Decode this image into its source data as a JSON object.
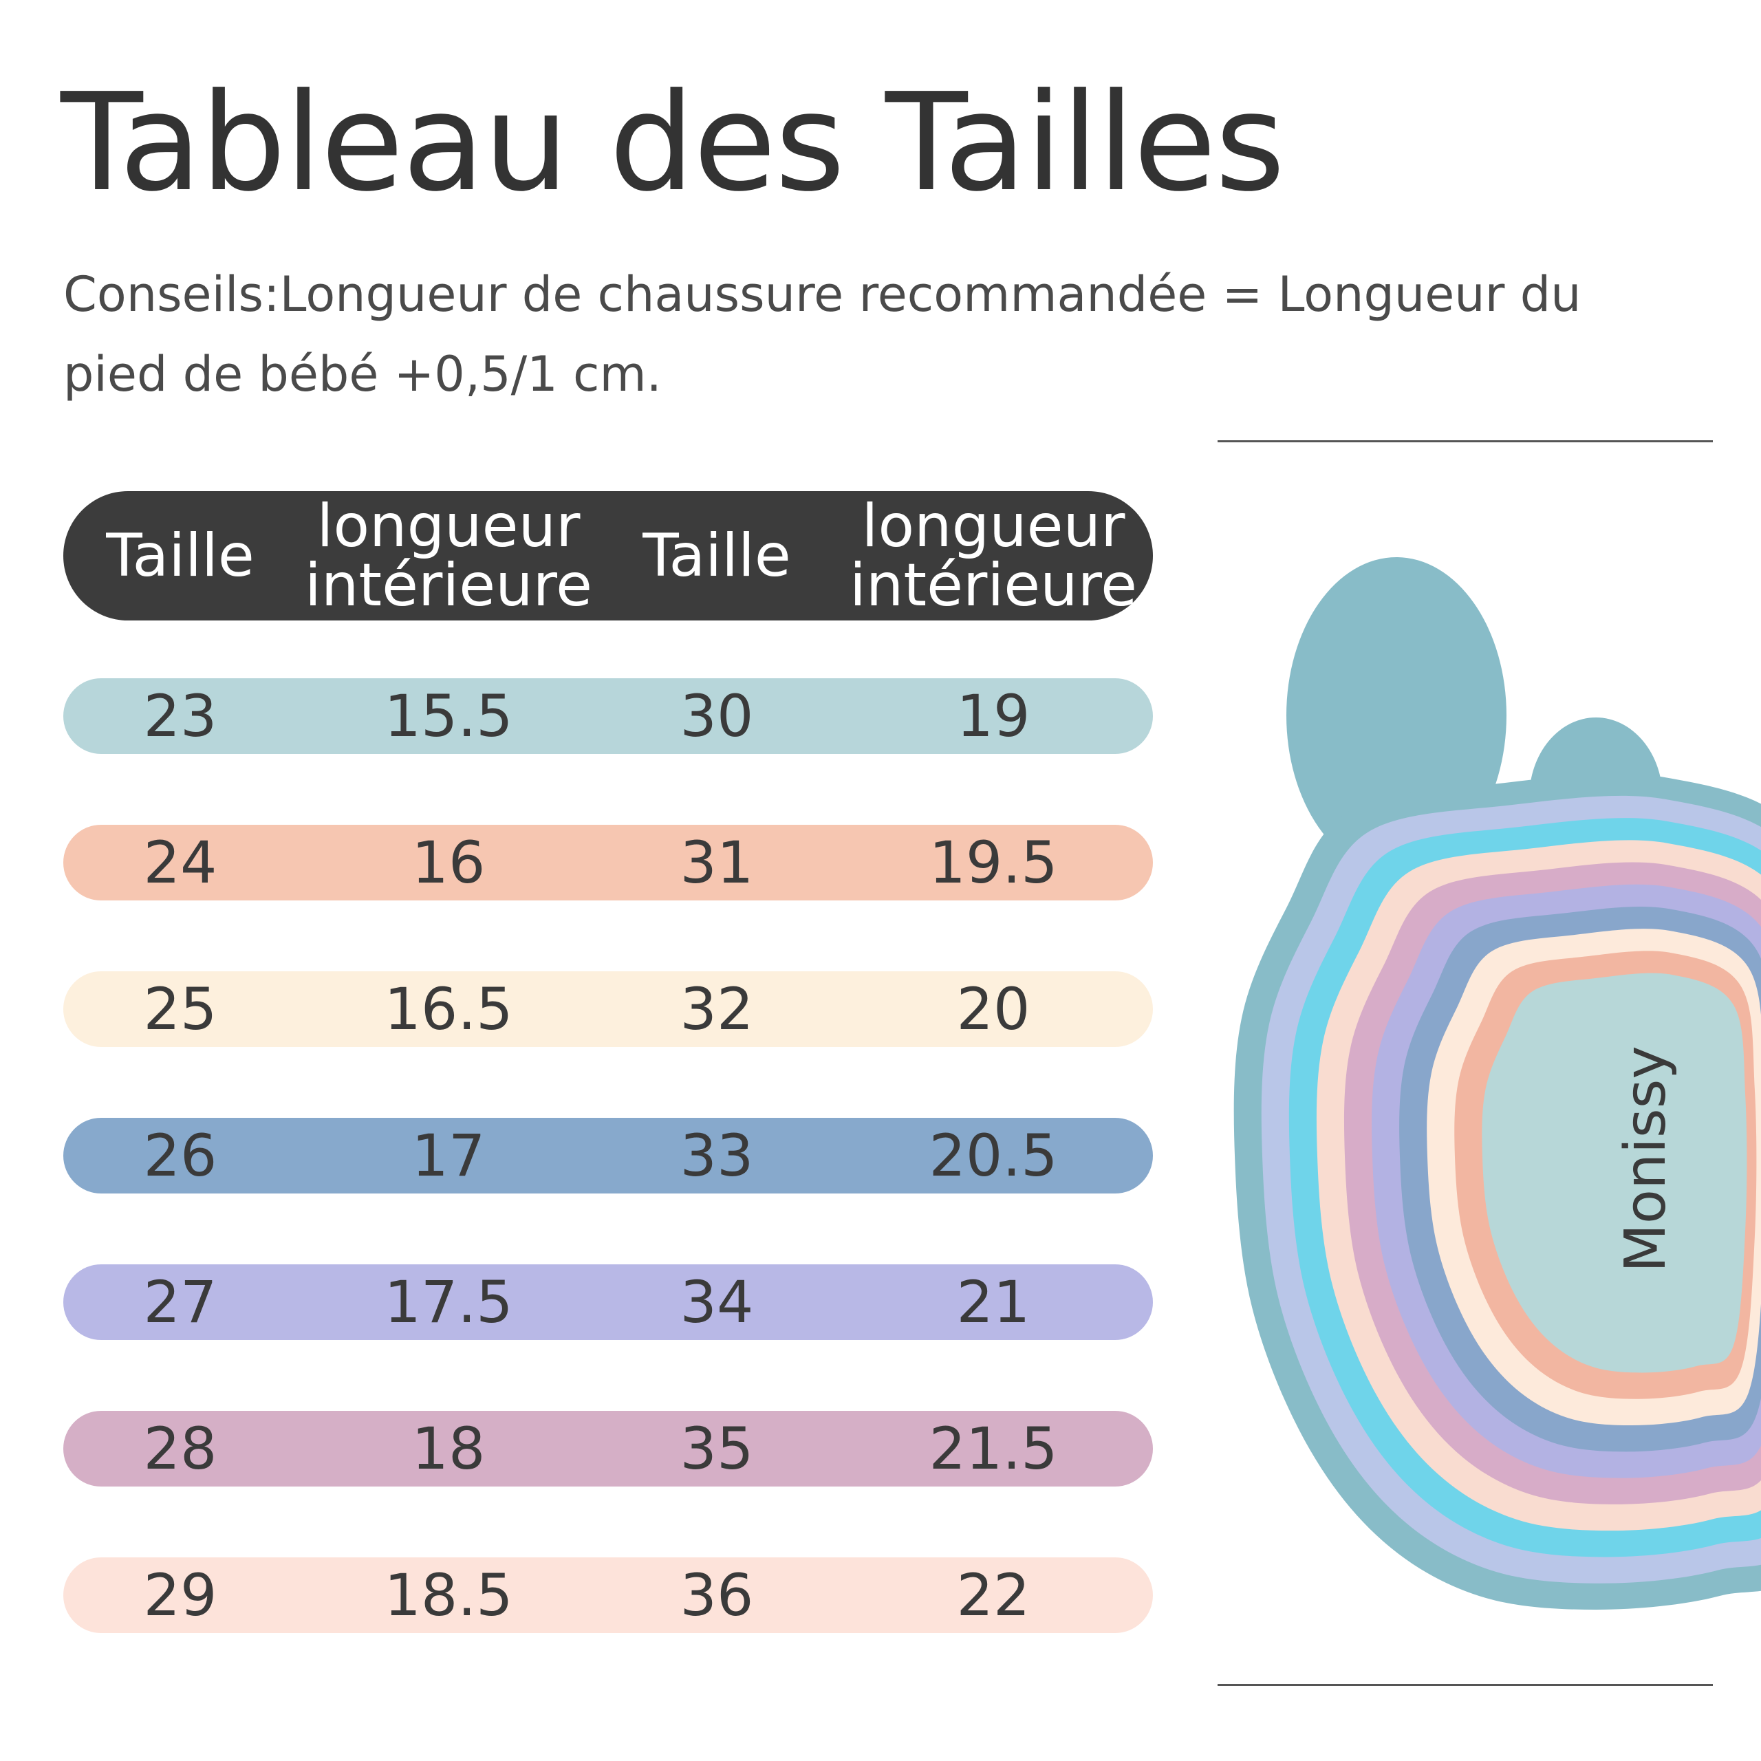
{
  "title": "Tableau des Tailles",
  "subtitle": "Conseils:Longueur de chaussure recommandée = Longueur du pied de bébé +0,5/1 cm.",
  "table": {
    "headers": [
      "Taille",
      "longueur intérieure",
      "Taille",
      "longueur intérieure"
    ],
    "rows": [
      {
        "color": "#b7d6da",
        "taille_a": "23",
        "longueur_a": "15.5",
        "taille_b": "30",
        "longueur_b": "19"
      },
      {
        "color": "#f6c6b1",
        "taille_a": "24",
        "longueur_a": "16",
        "taille_b": "31",
        "longueur_b": "19.5"
      },
      {
        "color": "#fdf0dd",
        "taille_a": "25",
        "longueur_a": "16.5",
        "taille_b": "32",
        "longueur_b": "20"
      },
      {
        "color": "#87a9cc",
        "taille_a": "26",
        "longueur_a": "17",
        "taille_b": "33",
        "longueur_b": "20.5"
      },
      {
        "color": "#b8b8e6",
        "taille_a": "27",
        "longueur_a": "17.5",
        "taille_b": "34",
        "longueur_b": "21"
      },
      {
        "color": "#d5afc6",
        "taille_a": "28",
        "longueur_a": "18",
        "taille_b": "35",
        "longueur_b": "21.5"
      },
      {
        "color": "#fde3da",
        "taille_a": "29",
        "longueur_a": "18.5",
        "taille_b": "36",
        "longueur_b": "22"
      }
    ]
  },
  "foot": {
    "brand": "Monissy",
    "ring_colors": [
      "#88bcc8",
      "#b9c6e8",
      "#6fd4ea",
      "#f9dcd0",
      "#d7acc8",
      "#b3b2e3",
      "#88a6cb",
      "#fdeadb",
      "#f2b6a1",
      "#b7d7d8"
    ],
    "toe_color": "#88bcc8"
  }
}
